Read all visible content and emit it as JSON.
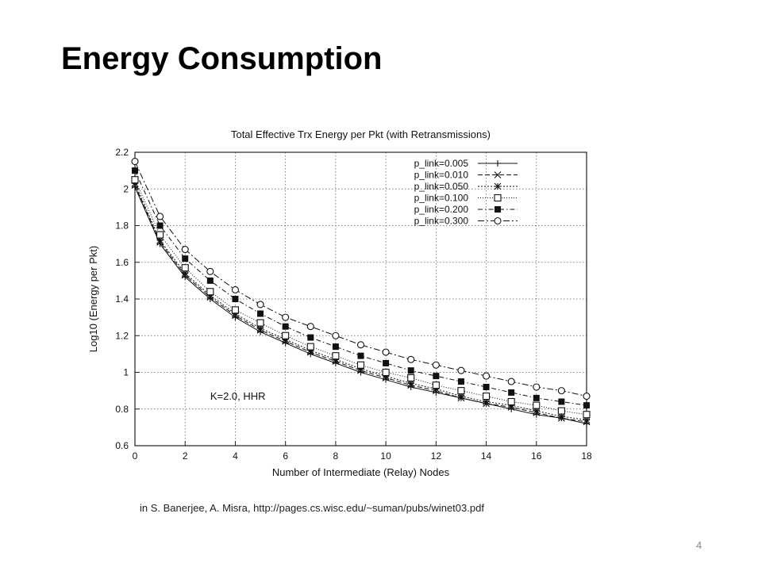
{
  "slide": {
    "title": "Energy Consumption",
    "caption": "in S. Banerjee, A. Misra, http://pages.cs.wisc.edu/~suman/pubs/winet03.pdf",
    "page_number": "4"
  },
  "chart_data": {
    "type": "line",
    "title": "Total Effective Trx Energy per Pkt (with Retransmissions)",
    "xlabel": "Number of Intermediate (Relay) Nodes",
    "ylabel": "Log10 (Energy per Pkt)",
    "annotation": "K=2.0, HHR",
    "xlim": [
      0,
      18
    ],
    "ylim": [
      0.6,
      2.2
    ],
    "x_ticks": [
      "0",
      "2",
      "4",
      "6",
      "8",
      "10",
      "12",
      "14",
      "16",
      "18"
    ],
    "y_ticks": [
      "0.6",
      "0.8",
      "1",
      "1.2",
      "1.4",
      "1.6",
      "1.8",
      "2",
      "2.2"
    ],
    "grid": true,
    "legend_position": "top-right",
    "x": [
      0,
      1,
      2,
      3,
      4,
      5,
      6,
      7,
      8,
      9,
      10,
      11,
      12,
      13,
      14,
      15,
      16,
      17,
      18
    ],
    "series": [
      {
        "name": "p_link=0.005",
        "marker": "plus",
        "dash": "solid",
        "values": [
          2.01,
          1.7,
          1.52,
          1.4,
          1.3,
          1.22,
          1.16,
          1.1,
          1.05,
          1.0,
          0.96,
          0.92,
          0.89,
          0.86,
          0.83,
          0.8,
          0.77,
          0.75,
          0.72
        ]
      },
      {
        "name": "p_link=0.010",
        "marker": "cross",
        "dash": "dashed",
        "values": [
          2.02,
          1.71,
          1.53,
          1.41,
          1.31,
          1.23,
          1.17,
          1.11,
          1.06,
          1.01,
          0.97,
          0.93,
          0.9,
          0.86,
          0.83,
          0.81,
          0.78,
          0.75,
          0.73
        ]
      },
      {
        "name": "p_link=0.050",
        "marker": "star",
        "dash": "dotted",
        "values": [
          2.03,
          1.72,
          1.54,
          1.42,
          1.32,
          1.24,
          1.18,
          1.12,
          1.07,
          1.02,
          0.98,
          0.94,
          0.91,
          0.87,
          0.84,
          0.82,
          0.79,
          0.76,
          0.74
        ]
      },
      {
        "name": "p_link=0.100",
        "marker": "square-open",
        "dash": "dotted-fine",
        "values": [
          2.05,
          1.75,
          1.57,
          1.44,
          1.34,
          1.27,
          1.2,
          1.14,
          1.09,
          1.04,
          1.0,
          0.97,
          0.93,
          0.9,
          0.87,
          0.84,
          0.82,
          0.79,
          0.77
        ]
      },
      {
        "name": "p_link=0.200",
        "marker": "square-filled",
        "dash": "dash-dot",
        "values": [
          2.1,
          1.8,
          1.62,
          1.5,
          1.4,
          1.32,
          1.25,
          1.19,
          1.14,
          1.09,
          1.05,
          1.01,
          0.98,
          0.95,
          0.92,
          0.89,
          0.86,
          0.84,
          0.82
        ]
      },
      {
        "name": "p_link=0.300",
        "marker": "circle-open",
        "dash": "dash-dot-long",
        "values": [
          2.15,
          1.85,
          1.67,
          1.55,
          1.45,
          1.37,
          1.3,
          1.25,
          1.2,
          1.15,
          1.11,
          1.07,
          1.04,
          1.01,
          0.98,
          0.95,
          0.92,
          0.9,
          0.87
        ]
      }
    ]
  }
}
